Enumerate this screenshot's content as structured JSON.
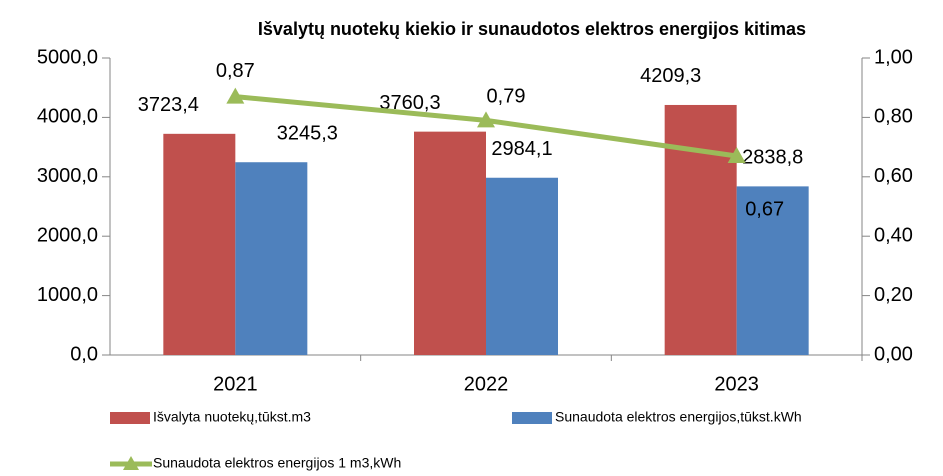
{
  "chart_data": {
    "type": "bar",
    "title": "Išvalytų nuotekų kiekio ir sunaudotos elektros energijos kitimas",
    "categories": [
      "2021",
      "2022",
      "2023"
    ],
    "series": [
      {
        "name": "Išvalyta nuotekų,tūkst.m3",
        "color": "#c0504d",
        "type": "bar",
        "values": [
          3723.4,
          3760.3,
          4209.3
        ],
        "value_labels": [
          "3723,4",
          "3760,3",
          "4209,3"
        ]
      },
      {
        "name": "Sunaudota elektros energijos,tūkst.kWh",
        "color": "#4f81bd",
        "type": "bar",
        "values": [
          3245.3,
          2984.1,
          2838.8
        ],
        "value_labels": [
          "3245,3",
          "2984,1",
          "2838,8"
        ]
      },
      {
        "name": "Sunaudota elektros energijos 1 m3,kWh",
        "color": "#9bbb59",
        "type": "line",
        "axis": "y2",
        "values": [
          0.87,
          0.79,
          0.67
        ],
        "value_labels": [
          "0,87",
          "0,79",
          "0,67"
        ]
      }
    ],
    "ylim": [
      0,
      5000
    ],
    "yticks": [
      {
        "value": 0,
        "label": "0,0"
      },
      {
        "value": 1000,
        "label": "1000,0"
      },
      {
        "value": 2000,
        "label": "2000,0"
      },
      {
        "value": 3000,
        "label": "3000,0"
      },
      {
        "value": 4000,
        "label": "4000,0"
      },
      {
        "value": 5000,
        "label": "5000,0"
      }
    ],
    "y2lim": [
      0,
      1
    ],
    "y2ticks": [
      {
        "value": 0,
        "label": "0,00"
      },
      {
        "value": 0.2,
        "label": "0,20"
      },
      {
        "value": 0.4,
        "label": "0,40"
      },
      {
        "value": 0.6,
        "label": "0,60"
      },
      {
        "value": 0.8,
        "label": "0,80"
      },
      {
        "value": 1,
        "label": "1,00"
      }
    ],
    "grid": false,
    "legend": "bottom"
  }
}
